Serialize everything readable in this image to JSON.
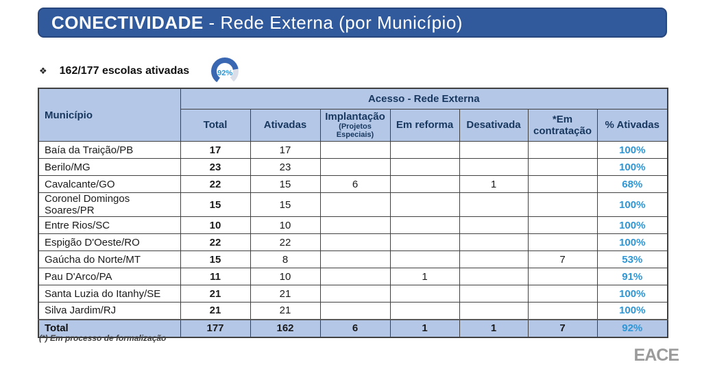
{
  "title": {
    "strong": "CONECTIVIDADE",
    "rest": " - Rede Externa (por Município)"
  },
  "summary": {
    "bullet": "❖",
    "stat": "162/177 escolas ativadas",
    "gauge_value": "92%",
    "gauge_percent": 92
  },
  "table": {
    "group_header": "Acesso - Rede Externa",
    "columns": [
      {
        "label": "Município"
      },
      {
        "label": "Total"
      },
      {
        "label": "Ativadas"
      },
      {
        "label": "Implantação",
        "sub": "(Projetos Especiais)"
      },
      {
        "label": "Em reforma"
      },
      {
        "label": "Desativada"
      },
      {
        "label": "*Em contratação"
      },
      {
        "label": "% Ativadas"
      }
    ],
    "rows": [
      [
        "Baía da Traição/PB",
        "17",
        "17",
        "",
        "",
        "",
        "",
        "100%"
      ],
      [
        "Berilo/MG",
        "23",
        "23",
        "",
        "",
        "",
        "",
        "100%"
      ],
      [
        "Cavalcante/GO",
        "22",
        "15",
        "6",
        "",
        "1",
        "",
        "68%"
      ],
      [
        "Coronel Domingos Soares/PR",
        "15",
        "15",
        "",
        "",
        "",
        "",
        "100%"
      ],
      [
        "Entre Rios/SC",
        "10",
        "10",
        "",
        "",
        "",
        "",
        "100%"
      ],
      [
        "Espigão D'Oeste/RO",
        "22",
        "22",
        "",
        "",
        "",
        "",
        "100%"
      ],
      [
        "Gaúcha do Norte/MT",
        "15",
        "8",
        "",
        "",
        "",
        "7",
        "53%"
      ],
      [
        "Pau D'Arco/PA",
        "11",
        "10",
        "",
        "1",
        "",
        "",
        "91%"
      ],
      [
        "Santa Luzia do Itanhy/SE",
        "21",
        "21",
        "",
        "",
        "",
        "",
        "100%"
      ],
      [
        "Silva Jardim/RJ",
        "21",
        "21",
        "",
        "",
        "",
        "",
        "100%"
      ]
    ],
    "total_row": [
      "Total",
      "177",
      "162",
      "6",
      "1",
      "1",
      "7",
      "92%"
    ]
  },
  "footnote": "(*) Em processo de formalização",
  "logo": "EACE",
  "colors": {
    "title-bar": "#315a9c",
    "title-bar-border": "#27477e",
    "header-fill": "#b4c7e7",
    "header-text": "#17375e",
    "percent-blue": "#2e96d5",
    "gauge-blue": "#3a67b1",
    "gauge-gray": "#d9dee8"
  }
}
